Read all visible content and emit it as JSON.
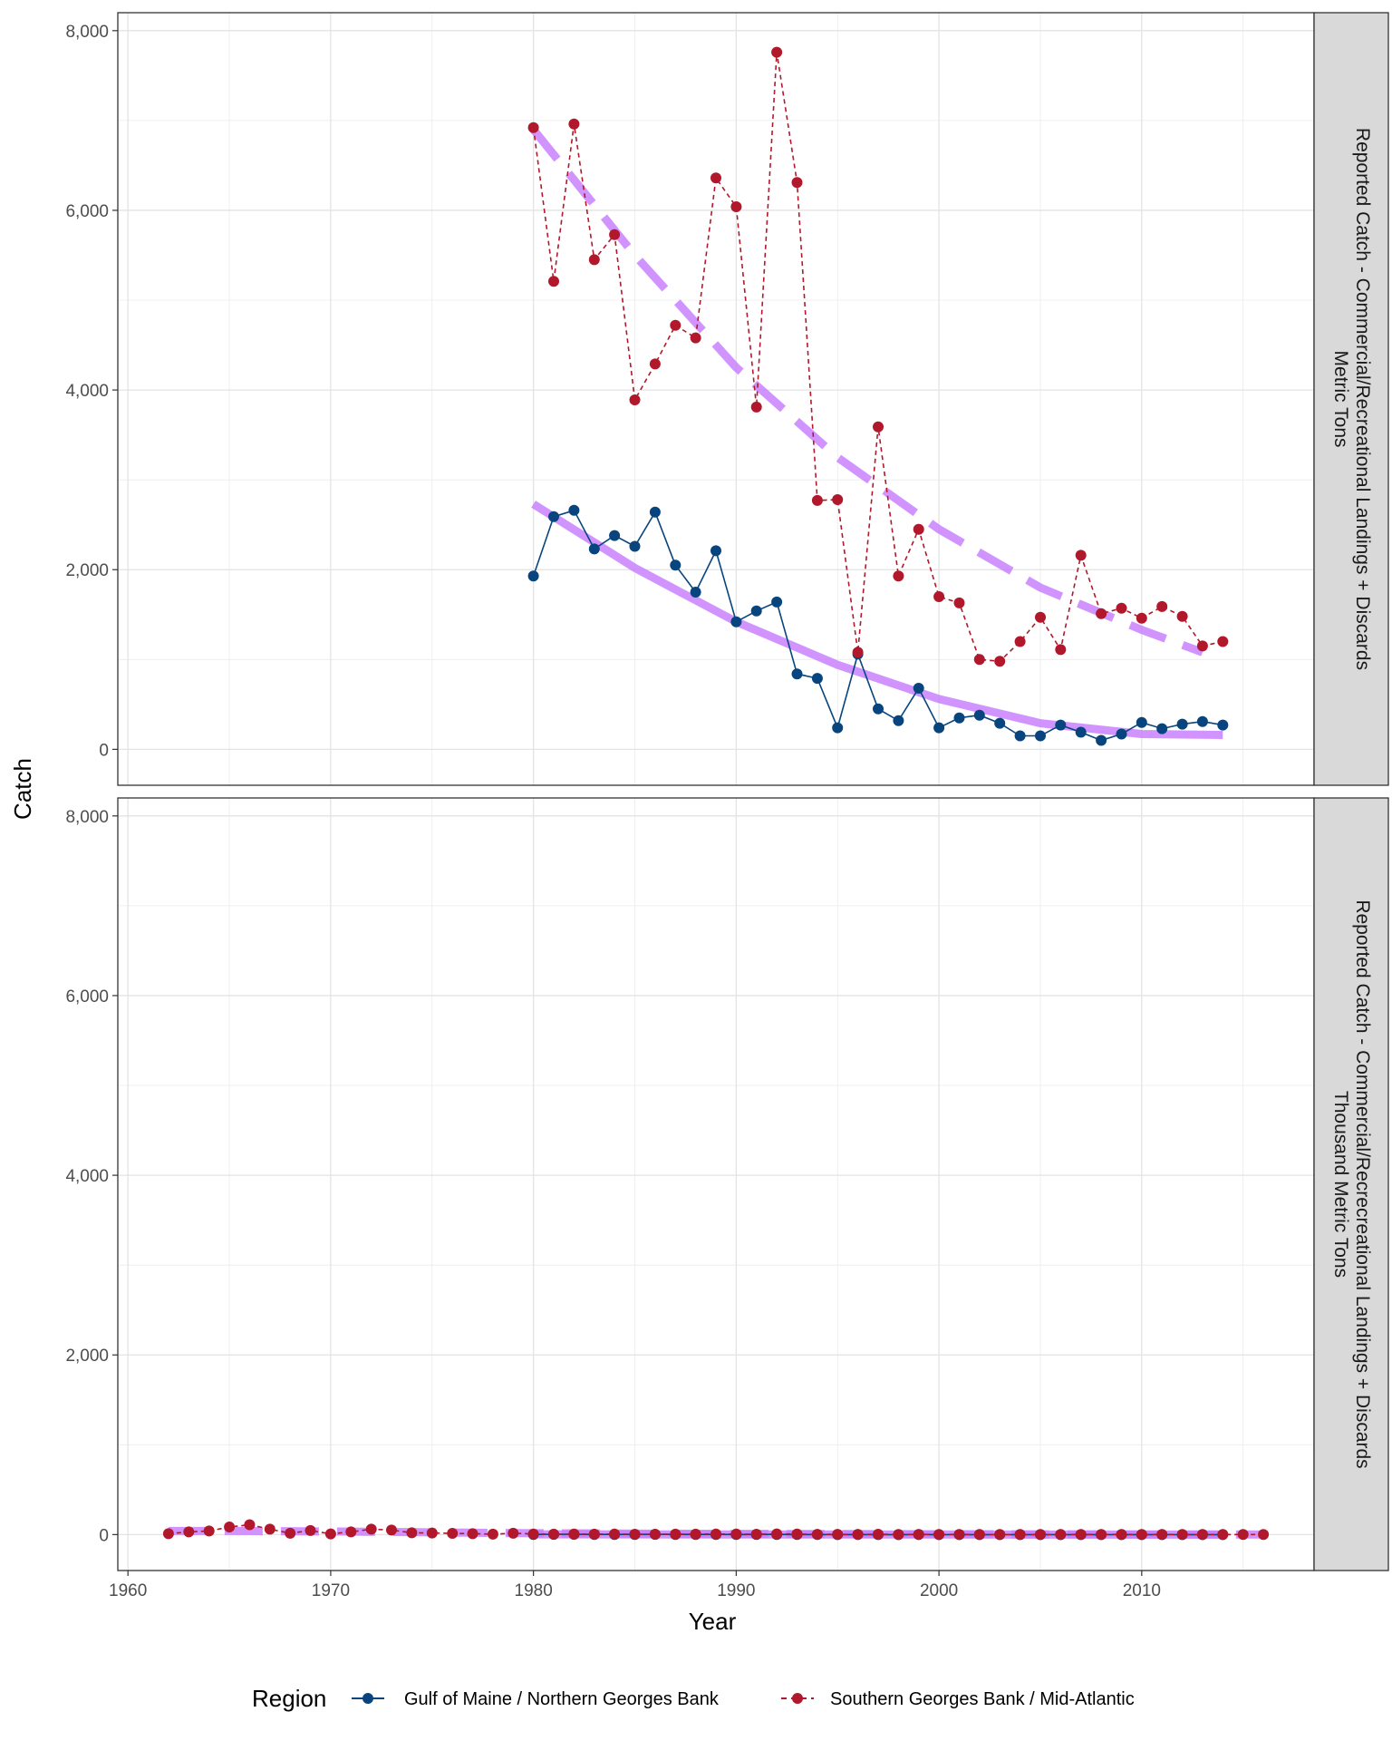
{
  "chart_data": {
    "type": "line",
    "xlabel": "Year",
    "ylabel": "Catch",
    "xlim": [
      1959.5,
      2018.5
    ],
    "ylim": [
      -400,
      8200
    ],
    "x_ticks": [
      "1960",
      "1970",
      "1980",
      "1990",
      "2000",
      "2010"
    ],
    "y_ticks": [
      "0",
      "2,000",
      "4,000",
      "6,000",
      "8,000"
    ],
    "grid": true,
    "trend_color": "#c77cff",
    "legend": {
      "position": "bottom",
      "title": "Region",
      "entries": [
        {
          "label": "Gulf of Maine / Northern Georges Bank",
          "color": "#08457e",
          "linestyle": "solid"
        },
        {
          "label": "Southern Georges Bank / Mid-Atlantic",
          "color": "#b2182b",
          "linestyle": "dashed"
        }
      ]
    },
    "panels": [
      {
        "strip_lines": [
          "Reported Catch - Commercial/Recreational Landings + Discards",
          "Metric Tons"
        ],
        "series": [
          {
            "region": "Gulf of Maine / Northern Georges Bank",
            "color": "#08457e",
            "linestyle": "solid",
            "x": [
              1980,
              1981,
              1982,
              1983,
              1984,
              1985,
              1986,
              1987,
              1988,
              1989,
              1990,
              1991,
              1992,
              1993,
              1994,
              1995,
              1996,
              1997,
              1998,
              1999,
              2000,
              2001,
              2002,
              2003,
              2004,
              2005,
              2006,
              2007,
              2008,
              2009,
              2010,
              2011,
              2012,
              2013,
              2014
            ],
            "y": [
              1930,
              2590,
              2660,
              2230,
              2380,
              2260,
              2640,
              2050,
              1750,
              2210,
              1420,
              1540,
              1640,
              840,
              790,
              240,
              1060,
              450,
              320,
              680,
              240,
              350,
              380,
              290,
              150,
              150,
              270,
              190,
              100,
              170,
              300,
              230,
              280,
              310,
              270
            ],
            "trend": {
              "x": [
                1980,
                1985,
                1990,
                1995,
                2000,
                2005,
                2010,
                2014
              ],
              "y": [
                2730,
                2020,
                1420,
                940,
                560,
                290,
                170,
                160
              ]
            }
          },
          {
            "region": "Southern Georges Bank / Mid-Atlantic",
            "color": "#b2182b",
            "linestyle": "dashed",
            "x": [
              1980,
              1981,
              1982,
              1983,
              1984,
              1985,
              1986,
              1987,
              1988,
              1989,
              1990,
              1991,
              1992,
              1993,
              1994,
              1995,
              1996,
              1997,
              1998,
              1999,
              2000,
              2001,
              2002,
              2003,
              2004,
              2005,
              2006,
              2007,
              2008,
              2009,
              2010,
              2011,
              2012,
              2013,
              2014
            ],
            "y": [
              6920,
              5210,
              6960,
              5450,
              5730,
              3890,
              4290,
              4720,
              4580,
              6360,
              6040,
              3810,
              7760,
              6310,
              2770,
              2780,
              1080,
              3590,
              1930,
              2450,
              1700,
              1630,
              1000,
              980,
              1200,
              1470,
              1110,
              2160,
              1510,
              1570,
              1460,
              1590,
              1480,
              1150,
              1200
            ],
            "trend": {
              "x": [
                1980,
                1985,
                1990,
                1995,
                2000,
                2005,
                2010,
                2013
              ],
              "y": [
                6900,
                5500,
                4250,
                3250,
                2450,
                1800,
                1330,
                1080
              ]
            }
          }
        ]
      },
      {
        "strip_lines": [
          "Reported Catch - Commercial/Recrecreational Landings + Discards",
          "Thousand Metric Tons"
        ],
        "series": [
          {
            "region": "Gulf of Maine / Northern Georges Bank",
            "color": "#08457e",
            "linestyle": "solid",
            "x": [
              1980,
              1981,
              1982,
              1983,
              1984,
              1985,
              1986,
              1987,
              1988,
              1989,
              1990,
              1991,
              1992,
              1993,
              1994,
              1995,
              1996,
              1997,
              1998,
              1999,
              2000,
              2001,
              2002,
              2003,
              2004,
              2005,
              2006,
              2007,
              2008,
              2009,
              2010,
              2011,
              2012,
              2013,
              2014
            ],
            "y": [
              2,
              3,
              3,
              2,
              2,
              2,
              3,
              2,
              2,
              2,
              1,
              2,
              2,
              1,
              1,
              0,
              1,
              0,
              0,
              1,
              0,
              0,
              0,
              0,
              0,
              0,
              0,
              0,
              0,
              0,
              0,
              0,
              0,
              0,
              0
            ],
            "trend": {
              "x": [
                1980,
                1990,
                2000,
                2014
              ],
              "y": [
                3,
                1,
                1,
                0
              ]
            }
          },
          {
            "region": "Southern Georges Bank / Mid-Atlantic",
            "color": "#b2182b",
            "linestyle": "dashed",
            "x": [
              1962,
              1963,
              1964,
              1965,
              1966,
              1967,
              1968,
              1969,
              1970,
              1971,
              1972,
              1973,
              1974,
              1975,
              1976,
              1977,
              1978,
              1979,
              1980,
              1981,
              1982,
              1983,
              1984,
              1985,
              1986,
              1987,
              1988,
              1989,
              1990,
              1991,
              1992,
              1993,
              1994,
              1995,
              1996,
              1997,
              1998,
              1999,
              2000,
              2001,
              2002,
              2003,
              2004,
              2005,
              2006,
              2007,
              2008,
              2009,
              2010,
              2011,
              2012,
              2013,
              2014,
              2015,
              2016
            ],
            "y": [
              10,
              30,
              40,
              85,
              110,
              60,
              15,
              45,
              8,
              30,
              60,
              50,
              20,
              18,
              14,
              10,
              5,
              15,
              7,
              5,
              7,
              5,
              6,
              4,
              4,
              5,
              5,
              6,
              6,
              4,
              8,
              6,
              3,
              3,
              1,
              4,
              2,
              2,
              2,
              2,
              1,
              1,
              1,
              1,
              1,
              2,
              2,
              2,
              1,
              2,
              1,
              1,
              1,
              1,
              1
            ],
            "trend": {
              "x": [
                1962,
                1966,
                1970,
                1975,
                1980,
                1990,
                2000,
                2010,
                2016
              ],
              "y": [
                40,
                40,
                35,
                25,
                15,
                8,
                4,
                2,
                1
              ]
            }
          }
        ]
      }
    ]
  }
}
